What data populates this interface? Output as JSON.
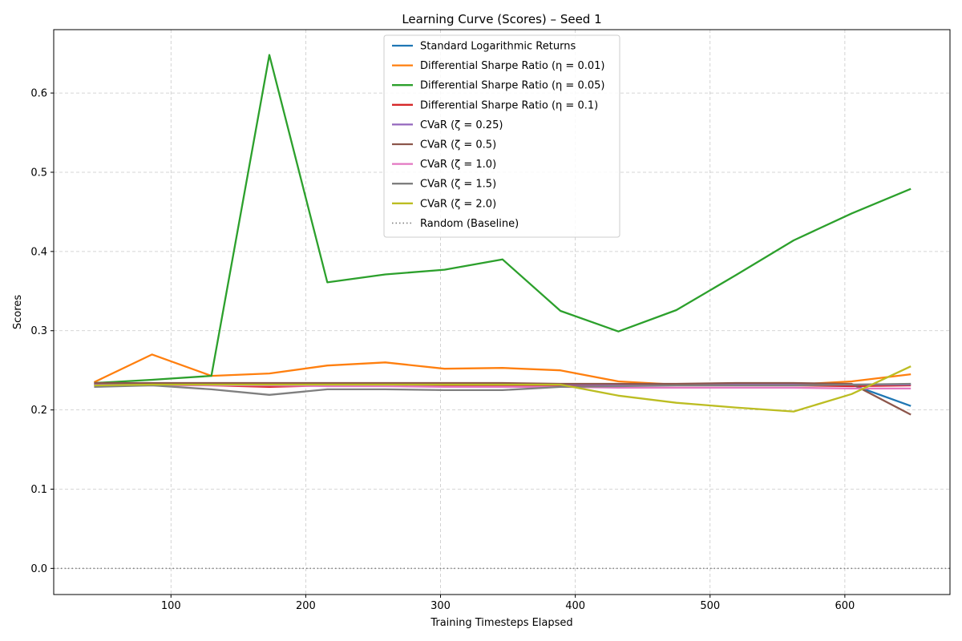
{
  "chart_data": {
    "type": "line",
    "title": "Learning Curve (Scores) – Seed 1",
    "xlabel": "Training Timesteps Elapsed",
    "ylabel": "Scores",
    "xlim": [
      13,
      678
    ],
    "ylim": [
      -0.033,
      0.68
    ],
    "xticks": [
      100,
      200,
      300,
      400,
      500,
      600
    ],
    "yticks": [
      0.0,
      0.1,
      0.2,
      0.3,
      0.4,
      0.5,
      0.6
    ],
    "ytick_labels": [
      "0.0",
      "0.1",
      "0.2",
      "0.3",
      "0.4",
      "0.5",
      "0.6"
    ],
    "grid": true,
    "legend_position": "top-center",
    "x": [
      43,
      86,
      130,
      173,
      216,
      259,
      303,
      346,
      389,
      432,
      475,
      519,
      562,
      605,
      649
    ],
    "series": [
      {
        "name": "Standard Logarithmic Returns",
        "color": "#1f77b4",
        "values": [
          0.232,
          0.232,
          0.232,
          0.232,
          0.232,
          0.232,
          0.232,
          0.232,
          0.232,
          0.232,
          0.232,
          0.232,
          0.232,
          0.232,
          0.205
        ]
      },
      {
        "name": "Differential Sharpe Ratio (η = 0.01)",
        "color": "#ff7f0e",
        "values": [
          0.235,
          0.27,
          0.243,
          0.246,
          0.256,
          0.26,
          0.252,
          0.253,
          0.25,
          0.236,
          0.232,
          0.232,
          0.232,
          0.236,
          0.245
        ]
      },
      {
        "name": "Differential Sharpe Ratio (η = 0.05)",
        "color": "#2ca02c",
        "values": [
          0.234,
          0.238,
          0.243,
          0.648,
          0.361,
          0.371,
          0.377,
          0.39,
          0.325,
          0.299,
          0.326,
          0.37,
          0.414,
          0.448,
          0.479
        ]
      },
      {
        "name": "Differential Sharpe Ratio (η = 0.1)",
        "color": "#d62728",
        "values": [
          0.233,
          0.232,
          0.231,
          0.229,
          0.231,
          0.231,
          0.231,
          0.231,
          0.231,
          0.231,
          0.231,
          0.231,
          0.231,
          0.23,
          0.231
        ]
      },
      {
        "name": "CVaR (ζ = 0.25)",
        "color": "#9467bd",
        "values": [
          0.232,
          0.232,
          0.232,
          0.232,
          0.232,
          0.232,
          0.232,
          0.232,
          0.232,
          0.232,
          0.232,
          0.232,
          0.232,
          0.232,
          0.232
        ]
      },
      {
        "name": "CVaR (ζ = 0.5)",
        "color": "#8c564b",
        "values": [
          0.234,
          0.234,
          0.234,
          0.234,
          0.234,
          0.234,
          0.234,
          0.234,
          0.233,
          0.233,
          0.233,
          0.234,
          0.234,
          0.233,
          0.194
        ]
      },
      {
        "name": "CVaR (ζ = 1.0)",
        "color": "#e377c2",
        "values": [
          0.231,
          0.231,
          0.231,
          0.231,
          0.23,
          0.23,
          0.229,
          0.229,
          0.229,
          0.228,
          0.228,
          0.228,
          0.228,
          0.227,
          0.227
        ]
      },
      {
        "name": "CVaR (ζ = 1.5)",
        "color": "#7f7f7f",
        "values": [
          0.229,
          0.231,
          0.226,
          0.219,
          0.226,
          0.226,
          0.225,
          0.225,
          0.229,
          0.23,
          0.231,
          0.231,
          0.231,
          0.232,
          0.233
        ]
      },
      {
        "name": "CVaR (ζ = 2.0)",
        "color": "#bcbd22",
        "values": [
          0.231,
          0.232,
          0.232,
          0.232,
          0.232,
          0.232,
          0.232,
          0.232,
          0.232,
          0.218,
          0.209,
          0.203,
          0.198,
          0.22,
          0.255
        ]
      },
      {
        "name": "Random (Baseline)",
        "color": "#7f7f7f",
        "dashed": true,
        "constant": 0.0
      }
    ]
  }
}
